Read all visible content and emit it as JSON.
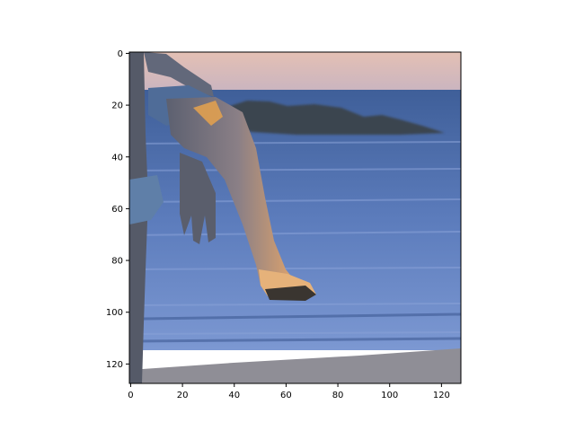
{
  "chart_data": {
    "type": "image",
    "image_size": [
      128,
      128
    ],
    "xlim": [
      -0.5,
      127.5
    ],
    "ylim": [
      127.5,
      -0.5
    ],
    "x_ticks": [
      "0",
      "20",
      "40",
      "60",
      "80",
      "100",
      "120"
    ],
    "y_ticks": [
      "0",
      "20",
      "40",
      "60",
      "80",
      "100",
      "120"
    ],
    "content": "photo crop: a person's leg mid-stride over blue sea water at a beach, rocks on the horizon, dusk sky"
  },
  "colors": {
    "sky": "#d9b8b0",
    "sea_dark": "#3e5f9a",
    "sea_light": "#6f8fcd",
    "rocks": "#3b4450",
    "sand": "#8f8e96",
    "skin_shadow": "#6b6f80",
    "skin_light": "#d7a070",
    "shorts": "#5f7fa8",
    "axes": "#000000"
  }
}
